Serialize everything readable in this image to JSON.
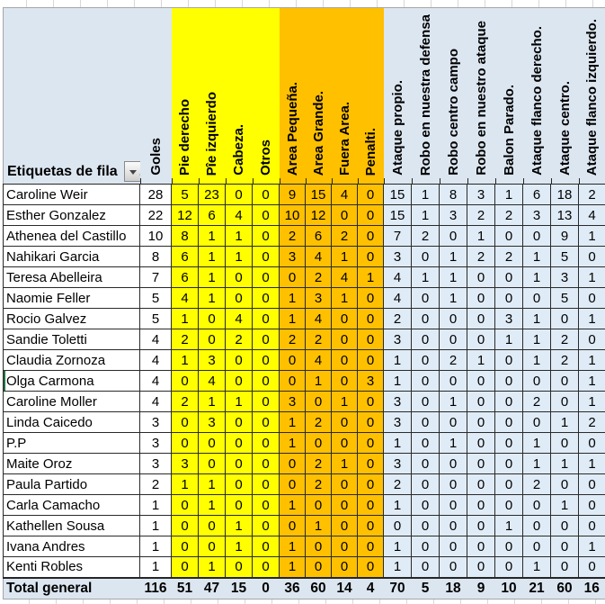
{
  "table": {
    "corner_label": "Etiquetas de fila",
    "colors": {
      "yellow": "#FFFF00",
      "orange": "#FFC000",
      "header_blue": "#DCE6F1",
      "data_blue": "#DFEBF6",
      "selection_green": "#217346"
    },
    "columns": [
      {
        "key": "goles",
        "label": "Goles",
        "group": "plain"
      },
      {
        "key": "pie-derecho",
        "label": "Pie derecho",
        "group": "yellow"
      },
      {
        "key": "pie-izquierdo",
        "label": "Pîe izquierdo",
        "group": "yellow"
      },
      {
        "key": "cabeza",
        "label": "Cabeza.",
        "group": "yellow"
      },
      {
        "key": "otros",
        "label": "Otros",
        "group": "yellow"
      },
      {
        "key": "area-pequena",
        "label": "Area Pequeña.",
        "group": "orange"
      },
      {
        "key": "area-grande",
        "label": "Area Grande.",
        "group": "orange"
      },
      {
        "key": "fuera-area",
        "label": "Fuera Area.",
        "group": "orange"
      },
      {
        "key": "penalti",
        "label": "Penalti.",
        "group": "orange"
      },
      {
        "key": "ataque-propio",
        "label": "Ataque propio.",
        "group": "blue"
      },
      {
        "key": "robo-en-nuestra-defensa",
        "label": "Robo en nuestra defensa",
        "group": "blue"
      },
      {
        "key": "robo-centro-campo",
        "label": "Robo centro campo",
        "group": "blue"
      },
      {
        "key": "robo-en-nuestro-ataque",
        "label": "Robo en nuestro ataque",
        "group": "blue"
      },
      {
        "key": "balon-parado",
        "label": "Balon Parado.",
        "group": "blue"
      },
      {
        "key": "ataque-flanco-derecho",
        "label": "Ataque flanco derecho.",
        "group": "blue"
      },
      {
        "key": "ataque-centro",
        "label": "Ataque centro.",
        "group": "blue"
      },
      {
        "key": "ataque-flanco-izquierdo",
        "label": "Ataque flanco izquierdo.",
        "group": "blue"
      }
    ],
    "rows": [
      {
        "name": "Caroline Weir",
        "values": [
          28,
          5,
          23,
          0,
          0,
          9,
          15,
          4,
          0,
          15,
          1,
          8,
          3,
          1,
          6,
          18,
          2
        ],
        "active": false
      },
      {
        "name": "Esther Gonzalez",
        "values": [
          22,
          12,
          6,
          4,
          0,
          10,
          12,
          0,
          0,
          15,
          1,
          3,
          2,
          2,
          3,
          13,
          4
        ],
        "active": false
      },
      {
        "name": "Athenea del Castillo",
        "values": [
          10,
          8,
          1,
          1,
          0,
          2,
          6,
          2,
          0,
          7,
          2,
          0,
          1,
          0,
          0,
          9,
          1
        ],
        "active": false
      },
      {
        "name": "Nahikari Garcia",
        "values": [
          8,
          6,
          1,
          1,
          0,
          3,
          4,
          1,
          0,
          3,
          0,
          1,
          2,
          2,
          1,
          5,
          0
        ],
        "active": false
      },
      {
        "name": "Teresa Abelleira",
        "values": [
          7,
          6,
          1,
          0,
          0,
          0,
          2,
          4,
          1,
          4,
          1,
          1,
          0,
          0,
          1,
          3,
          1
        ],
        "active": false
      },
      {
        "name": "Naomie Feller",
        "values": [
          5,
          4,
          1,
          0,
          0,
          1,
          3,
          1,
          0,
          4,
          0,
          1,
          0,
          0,
          0,
          5,
          0
        ],
        "active": false
      },
      {
        "name": "Rocio Galvez",
        "values": [
          5,
          1,
          0,
          4,
          0,
          1,
          4,
          0,
          0,
          2,
          0,
          0,
          0,
          3,
          1,
          0,
          1
        ],
        "active": false
      },
      {
        "name": "Sandie Toletti",
        "values": [
          4,
          2,
          0,
          2,
          0,
          2,
          2,
          0,
          0,
          3,
          0,
          0,
          0,
          1,
          1,
          2,
          0
        ],
        "active": false
      },
      {
        "name": "Claudia Zornoza",
        "values": [
          4,
          1,
          3,
          0,
          0,
          0,
          4,
          0,
          0,
          1,
          0,
          2,
          1,
          0,
          1,
          2,
          1
        ],
        "active": false
      },
      {
        "name": "Olga Carmona",
        "values": [
          4,
          0,
          4,
          0,
          0,
          0,
          1,
          0,
          3,
          1,
          0,
          0,
          0,
          0,
          0,
          0,
          1
        ],
        "active": true
      },
      {
        "name": "Caroline Moller",
        "values": [
          4,
          2,
          1,
          1,
          0,
          3,
          0,
          1,
          0,
          3,
          0,
          1,
          0,
          0,
          2,
          0,
          1
        ],
        "active": false
      },
      {
        "name": "Linda Caicedo",
        "values": [
          3,
          0,
          3,
          0,
          0,
          1,
          2,
          0,
          0,
          3,
          0,
          0,
          0,
          0,
          0,
          1,
          2
        ],
        "active": false
      },
      {
        "name": "P.P",
        "values": [
          3,
          0,
          0,
          0,
          0,
          1,
          0,
          0,
          0,
          1,
          0,
          1,
          0,
          0,
          1,
          0,
          0
        ],
        "active": false
      },
      {
        "name": "Maite Oroz",
        "values": [
          3,
          3,
          0,
          0,
          0,
          0,
          2,
          1,
          0,
          3,
          0,
          0,
          0,
          0,
          1,
          1,
          1
        ],
        "active": false
      },
      {
        "name": "Paula Partido",
        "values": [
          2,
          1,
          1,
          0,
          0,
          0,
          2,
          0,
          0,
          2,
          0,
          0,
          0,
          0,
          2,
          0,
          0
        ],
        "active": false
      },
      {
        "name": "Carla Camacho",
        "values": [
          1,
          0,
          1,
          0,
          0,
          1,
          0,
          0,
          0,
          1,
          0,
          0,
          0,
          0,
          0,
          1,
          0
        ],
        "active": false
      },
      {
        "name": "Kathellen Sousa",
        "values": [
          1,
          0,
          0,
          1,
          0,
          0,
          1,
          0,
          0,
          0,
          0,
          0,
          0,
          1,
          0,
          0,
          0
        ],
        "active": false
      },
      {
        "name": "Ivana Andres",
        "values": [
          1,
          0,
          0,
          1,
          0,
          1,
          0,
          0,
          0,
          1,
          0,
          0,
          0,
          0,
          0,
          0,
          1
        ],
        "active": false
      },
      {
        "name": "Kenti Robles",
        "values": [
          1,
          0,
          1,
          0,
          0,
          1,
          0,
          0,
          0,
          1,
          0,
          0,
          0,
          0,
          1,
          0,
          0
        ],
        "active": false
      }
    ],
    "total": {
      "label": "Total general",
      "values": [
        116,
        51,
        47,
        15,
        0,
        36,
        60,
        14,
        4,
        70,
        5,
        18,
        9,
        10,
        21,
        60,
        16
      ]
    }
  }
}
